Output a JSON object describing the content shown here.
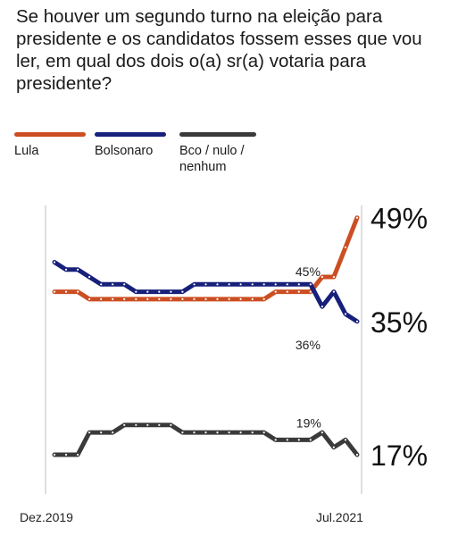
{
  "title": "Se houver um segundo turno na eleição para presidente e os candidatos fossem esses que vou ler, em qual dos dois o(a) sr(a) votaria para presidente?",
  "colors": {
    "lula": "#cc4e22",
    "bolsonaro": "#17207a",
    "bco": "#3a3a3a",
    "axis": "#bdbdbd",
    "dot": "#ffffff"
  },
  "chart_data": {
    "type": "line",
    "x_start_label": "Dez.2019",
    "x_end_label": "Jul.2021",
    "ylim": [
      10,
      55
    ],
    "series": [
      {
        "name": "Lula",
        "color": "#cc4e22",
        "values": [
          39,
          39,
          39,
          38,
          38,
          38,
          38,
          38,
          38,
          38,
          38,
          38,
          38,
          38,
          38,
          38,
          38,
          38,
          38,
          39,
          39,
          39,
          39,
          41,
          41,
          45,
          49
        ]
      },
      {
        "name": "Bolsonaro",
        "color": "#17207a",
        "values": [
          43,
          42,
          42,
          41,
          40,
          40,
          40,
          39,
          39,
          39,
          39,
          39,
          40,
          40,
          40,
          40,
          40,
          40,
          40,
          40,
          40,
          40,
          40,
          37,
          39,
          36,
          35
        ]
      },
      {
        "name": "Bco / nulo / nenhum",
        "color": "#3a3a3a",
        "values": [
          17,
          17,
          17,
          20,
          20,
          20,
          21,
          21,
          21,
          21,
          21,
          20,
          20,
          20,
          20,
          20,
          20,
          20,
          20,
          19,
          19,
          19,
          19,
          20,
          18,
          19,
          17
        ]
      }
    ],
    "annotations": [
      {
        "text": "45%",
        "series": 1,
        "point": 23,
        "dx": -30,
        "dy": -34
      },
      {
        "text": "36%",
        "series": 1,
        "point": 23,
        "dx": -30,
        "dy": 48
      },
      {
        "text": "19%",
        "series": 2,
        "point": 20,
        "dx": 10,
        "dy": -14
      }
    ],
    "end_labels": [
      "49%",
      "35%",
      "17%"
    ]
  },
  "legend": [
    {
      "label": "Lula"
    },
    {
      "label": "Bolsonaro"
    },
    {
      "label": "Bco / nulo / nenhum",
      "wrap": true
    }
  ]
}
